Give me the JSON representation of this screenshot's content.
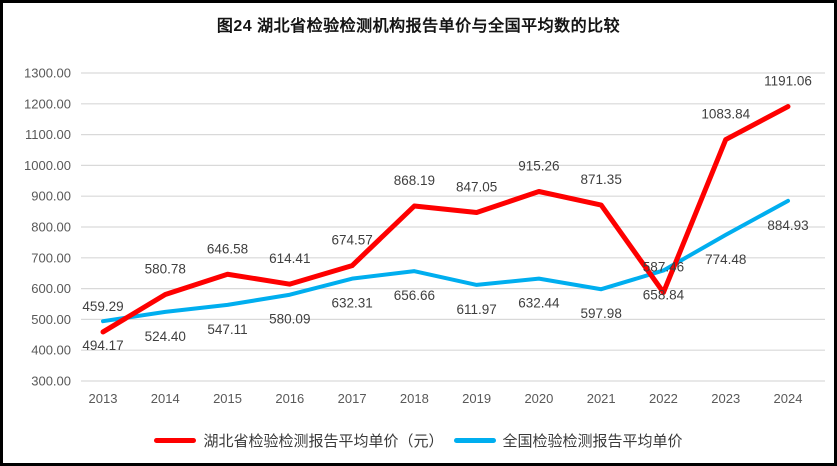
{
  "chart_data": {
    "type": "line",
    "title": "图24 湖北省检验检测机构报告单价与全国平均数的比较",
    "categories": [
      "2013",
      "2014",
      "2015",
      "2016",
      "2017",
      "2018",
      "2019",
      "2020",
      "2021",
      "2022",
      "2023",
      "2024"
    ],
    "series": [
      {
        "id": "hubei",
        "name": "湖北省检验检测报告平均单价（元）",
        "color": "#FE0000",
        "width": 5,
        "label_position": "above",
        "values": [
          459.29,
          580.78,
          646.58,
          614.41,
          674.57,
          868.19,
          847.05,
          915.26,
          871.35,
          587.46,
          1083.84,
          1191.06
        ]
      },
      {
        "id": "national",
        "name": "全国检验检测报告平均单价",
        "color": "#00AEEF",
        "width": 4,
        "label_position": "below",
        "values": [
          494.17,
          524.4,
          547.11,
          580.09,
          632.31,
          656.66,
          611.97,
          632.44,
          597.98,
          658.84,
          774.48,
          884.93
        ]
      }
    ],
    "ylim": [
      300,
      1300
    ],
    "y_ticks": [
      {
        "value": 300,
        "label": "300.00"
      },
      {
        "value": 400,
        "label": "400.00"
      },
      {
        "value": 500,
        "label": "500.00"
      },
      {
        "value": 600,
        "label": "600.00"
      },
      {
        "value": 700,
        "label": "700.00"
      },
      {
        "value": 800,
        "label": "800.00"
      },
      {
        "value": 900,
        "label": "900.00"
      },
      {
        "value": 1000,
        "label": "1000.00"
      },
      {
        "value": 1100,
        "label": "1100.00"
      },
      {
        "value": 1200,
        "label": "1200.00"
      },
      {
        "value": 1300,
        "label": "1300.00"
      }
    ],
    "grid": "horizontal",
    "legend_position": "bottom",
    "colors": {
      "grid": "#D9D9D9",
      "axis_text": "#595959",
      "data_label": "#3F3F3F",
      "background": "#FFFFFF",
      "border": "#000000"
    }
  }
}
